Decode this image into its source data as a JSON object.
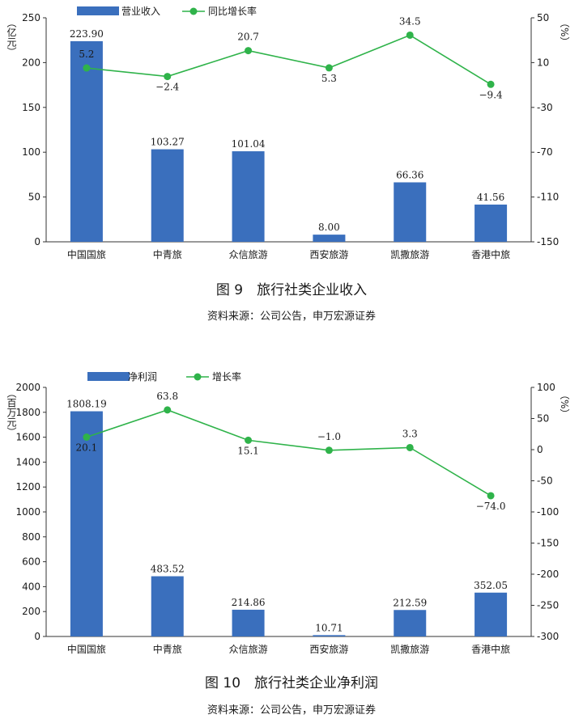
{
  "chart_data": [
    {
      "type": "bar",
      "categories": [
        "中国国旅",
        "中青旅",
        "众信旅游",
        "西安旅游",
        "凯撒旅游",
        "香港中旅"
      ],
      "series": [
        {
          "name": "营业收入",
          "axis": "left",
          "kind": "bar",
          "values": [
            223.9,
            103.27,
            101.04,
            8.0,
            66.36,
            41.56
          ],
          "labels": [
            "223.90",
            "103.27",
            "101.04",
            "8.00",
            "66.36",
            "41.56"
          ]
        },
        {
          "name": "同比增长率",
          "axis": "right",
          "kind": "line",
          "values": [
            5.2,
            -2.4,
            20.7,
            5.3,
            34.5,
            -9.4
          ],
          "labels": [
            "5.2",
            "−2.4",
            "20.7",
            "5.3",
            "34.5",
            "−9.4"
          ]
        }
      ],
      "left_axis": {
        "label": "（亿元）",
        "ylim": [
          0,
          250
        ],
        "ticks": [
          0,
          50,
          100,
          150,
          200,
          250
        ]
      },
      "right_axis": {
        "label": "（%）",
        "ylim": [
          -150,
          50
        ],
        "ticks": [
          -150,
          -110,
          -70,
          -30,
          10,
          50
        ]
      },
      "title": "图 9　旅行社类企业收入",
      "source": "资料来源：公司公告，申万宏源证券",
      "legend": "top-left",
      "bar_color": "#3a6fbd",
      "line_color": "#2fb34a",
      "grid": false
    },
    {
      "type": "bar",
      "categories": [
        "中国国旅",
        "中青旅",
        "众信旅游",
        "西安旅游",
        "凯撒旅游",
        "香港中旅"
      ],
      "series": [
        {
          "name": "净利润",
          "axis": "left",
          "kind": "bar",
          "values": [
            1808.19,
            483.52,
            214.86,
            10.71,
            212.59,
            352.05
          ],
          "labels": [
            "1808.19",
            "483.52",
            "214.86",
            "10.71",
            "212.59",
            "352.05"
          ]
        },
        {
          "name": "增长率",
          "axis": "right",
          "kind": "line",
          "values": [
            20.1,
            63.8,
            15.1,
            -1.0,
            3.3,
            -74.0
          ],
          "labels": [
            "20.1",
            "63.8",
            "15.1",
            "−1.0",
            "3.3",
            "−74.0"
          ]
        }
      ],
      "left_axis": {
        "label": "（百万元）",
        "ylim": [
          0,
          2000
        ],
        "ticks": [
          0,
          200,
          400,
          600,
          800,
          1000,
          1200,
          1400,
          1600,
          1800,
          2000
        ]
      },
      "right_axis": {
        "label": "（%）",
        "ylim": [
          -300,
          100
        ],
        "ticks": [
          -300,
          -250,
          -200,
          -150,
          -100,
          -50,
          0,
          50,
          100
        ]
      },
      "title": "图 10　旅行社类企业净利润",
      "source": "资料来源：公司公告，申万宏源证券",
      "legend": "top-left",
      "bar_color": "#3a6fbd",
      "line_color": "#2fb34a",
      "grid": false
    }
  ]
}
